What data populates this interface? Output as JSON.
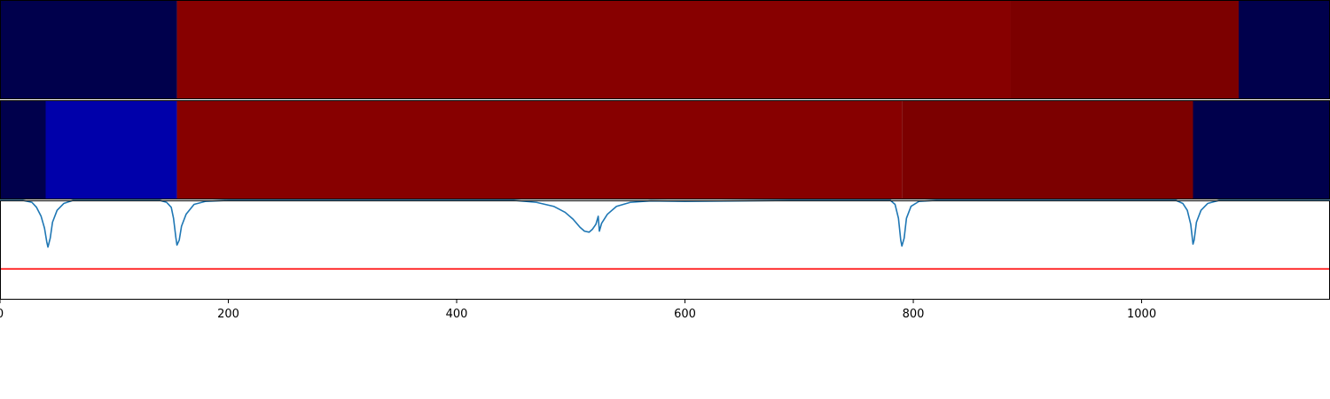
{
  "chart_data": [
    {
      "type": "heatmap",
      "colormap": "seismic",
      "segments": [
        {
          "start": 0,
          "end": 155,
          "color": "#00004c"
        },
        {
          "start": 155,
          "end": 885,
          "color": "#870000"
        },
        {
          "start": 885,
          "end": 1085,
          "color": "#7c0000"
        },
        {
          "start": 1085,
          "end": 1165,
          "color": "#00004c"
        }
      ]
    },
    {
      "type": "heatmap",
      "colormap": "seismic",
      "segments": [
        {
          "start": 0,
          "end": 40,
          "color": "#00004c"
        },
        {
          "start": 40,
          "end": 155,
          "color": "#0000aa"
        },
        {
          "start": 155,
          "end": 790,
          "color": "#870000"
        },
        {
          "start": 790,
          "end": 1045,
          "color": "#7c0000"
        },
        {
          "start": 1045,
          "end": 1165,
          "color": "#00004c"
        }
      ]
    },
    {
      "type": "line",
      "xlim": [
        0,
        1165
      ],
      "ylim": [
        0,
        1
      ],
      "x_ticks": [
        0,
        200,
        400,
        600,
        800,
        1000
      ],
      "x_tick_labels": [
        "0",
        "200",
        "400",
        "600",
        "800",
        "1000"
      ],
      "threshold": {
        "y": 0.31,
        "color": "#ff0000"
      },
      "line_color": "#1f77b4",
      "points": [
        [
          0,
          1.0
        ],
        [
          20,
          1.0
        ],
        [
          28,
          0.98
        ],
        [
          32,
          0.93
        ],
        [
          36,
          0.84
        ],
        [
          39,
          0.72
        ],
        [
          41,
          0.58
        ],
        [
          42,
          0.53
        ],
        [
          44,
          0.62
        ],
        [
          46,
          0.78
        ],
        [
          50,
          0.9
        ],
        [
          56,
          0.97
        ],
        [
          64,
          1.0
        ],
        [
          140,
          1.0
        ],
        [
          146,
          0.98
        ],
        [
          150,
          0.93
        ],
        [
          152,
          0.82
        ],
        [
          154,
          0.63
        ],
        [
          155,
          0.55
        ],
        [
          157,
          0.6
        ],
        [
          159,
          0.74
        ],
        [
          163,
          0.86
        ],
        [
          170,
          0.96
        ],
        [
          180,
          0.99
        ],
        [
          200,
          1.0
        ],
        [
          450,
          1.0
        ],
        [
          470,
          0.98
        ],
        [
          485,
          0.94
        ],
        [
          495,
          0.88
        ],
        [
          502,
          0.81
        ],
        [
          508,
          0.73
        ],
        [
          512,
          0.69
        ],
        [
          516,
          0.68
        ],
        [
          519,
          0.71
        ],
        [
          522,
          0.76
        ],
        [
          524,
          0.84
        ],
        [
          525,
          0.69
        ],
        [
          527,
          0.77
        ],
        [
          532,
          0.86
        ],
        [
          540,
          0.94
        ],
        [
          552,
          0.98
        ],
        [
          570,
          0.995
        ],
        [
          600,
          0.99
        ],
        [
          700,
          1.0
        ],
        [
          780,
          1.0
        ],
        [
          784,
          0.96
        ],
        [
          787,
          0.82
        ],
        [
          789,
          0.6
        ],
        [
          790,
          0.54
        ],
        [
          792,
          0.62
        ],
        [
          794,
          0.82
        ],
        [
          798,
          0.94
        ],
        [
          805,
          0.99
        ],
        [
          820,
          1.0
        ],
        [
          1030,
          1.0
        ],
        [
          1036,
          0.97
        ],
        [
          1040,
          0.9
        ],
        [
          1043,
          0.76
        ],
        [
          1045,
          0.56
        ],
        [
          1046,
          0.6
        ],
        [
          1048,
          0.78
        ],
        [
          1052,
          0.9
        ],
        [
          1058,
          0.97
        ],
        [
          1068,
          1.0
        ],
        [
          1165,
          1.0
        ]
      ]
    }
  ]
}
